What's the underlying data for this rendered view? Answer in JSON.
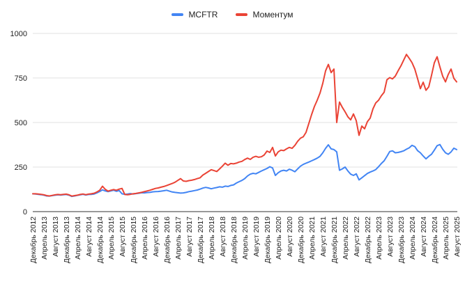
{
  "chart_data": {
    "type": "line",
    "title": "",
    "xlabel": "",
    "ylabel": "",
    "ylim": [
      0,
      1000
    ],
    "yticks": [
      0,
      250,
      500,
      750,
      1000
    ],
    "grid": true,
    "legend_position": "top-center",
    "x_start_label": "Декабрь 2012",
    "x_end_label": "Август 2025",
    "x_points_per_label": 4,
    "x_tick_labels": [
      "Декабрь 2012",
      "Апрель 2013",
      "Август 2013",
      "Декабрь 2013",
      "Апрель 2014",
      "Август 2014",
      "Декабрь 2014",
      "Апрель 2015",
      "Август 2015",
      "Декабрь 2015",
      "Апрель 2016",
      "Август 2016",
      "Декабрь 2016",
      "Апрель 2017",
      "Август 2017",
      "Декабрь 2017",
      "Апрель 2018",
      "Август 2018",
      "Декабрь 2018",
      "Апрель 2019",
      "Август 2019",
      "Декабрь 2019",
      "Апрель 2020",
      "Август 2020",
      "Декабрь 2020",
      "Апрель 2021",
      "Август 2021",
      "Декабрь 2021",
      "Апрель 2022",
      "Август 2022",
      "Декабрь 2022",
      "Апрель 2023",
      "Август 2023",
      "Декабрь 2023",
      "Апрель 2024",
      "Август 2024",
      "Декабрь 2024",
      "Апрель 2025",
      "Август 2025"
    ],
    "series": [
      {
        "name": "MCFTR",
        "color": "#4285f4",
        "values": [
          100,
          99,
          97,
          95,
          92,
          88,
          87,
          90,
          92,
          94,
          93,
          95,
          96,
          92,
          85,
          88,
          91,
          94,
          97,
          93,
          96,
          97,
          99,
          105,
          113,
          122,
          116,
          112,
          116,
          120,
          114,
          118,
          100,
          97,
          99,
          101,
          99,
          101,
          103,
          106,
          105,
          107,
          108,
          111,
          112,
          113,
          115,
          117,
          120,
          115,
          110,
          108,
          106,
          104,
          105,
          108,
          112,
          115,
          118,
          121,
          126,
          132,
          136,
          133,
          128,
          132,
          135,
          139,
          137,
          143,
          141,
          147,
          150,
          160,
          168,
          175,
          185,
          200,
          210,
          215,
          212,
          220,
          228,
          235,
          242,
          252,
          245,
          203,
          218,
          228,
          232,
          228,
          238,
          232,
          224,
          240,
          255,
          265,
          272,
          278,
          285,
          292,
          300,
          310,
          330,
          355,
          375,
          352,
          348,
          335,
          232,
          240,
          250,
          228,
          210,
          203,
          212,
          178,
          190,
          202,
          214,
          222,
          228,
          236,
          252,
          270,
          285,
          310,
          337,
          341,
          330,
          332,
          336,
          341,
          350,
          358,
          372,
          365,
          342,
          330,
          312,
          296,
          310,
          322,
          345,
          370,
          376,
          350,
          330,
          322,
          335,
          356,
          348
        ]
      },
      {
        "name": "Моментум",
        "color": "#ea4335",
        "values": [
          100,
          100,
          99,
          97,
          94,
          90,
          88,
          91,
          94,
          96,
          95,
          97,
          98,
          94,
          87,
          90,
          92,
          96,
          99,
          95,
          98,
          100,
          103,
          110,
          120,
          142,
          125,
          115,
          120,
          124,
          120,
          126,
          130,
          96,
          95,
          97,
          100,
          102,
          105,
          108,
          112,
          116,
          120,
          125,
          130,
          133,
          137,
          141,
          146,
          152,
          158,
          165,
          175,
          185,
          172,
          170,
          174,
          176,
          180,
          185,
          190,
          205,
          215,
          225,
          235,
          230,
          225,
          240,
          255,
          272,
          260,
          270,
          268,
          272,
          278,
          282,
          292,
          300,
          293,
          305,
          310,
          305,
          308,
          318,
          340,
          332,
          360,
          312,
          335,
          345,
          342,
          352,
          360,
          355,
          372,
          395,
          412,
          420,
          445,
          495,
          545,
          590,
          625,
          665,
          720,
          790,
          826,
          780,
          800,
          500,
          615,
          585,
          560,
          532,
          515,
          548,
          510,
          428,
          480,
          465,
          505,
          525,
          577,
          610,
          625,
          650,
          670,
          740,
          752,
          745,
          760,
          790,
          817,
          850,
          882,
          860,
          836,
          800,
          746,
          690,
          726,
          681,
          700,
          765,
          835,
          869,
          812,
          760,
          728,
          770,
          800,
          748,
          728
        ]
      }
    ],
    "colors": {
      "gridline": "#e0e0e0",
      "axis_baseline": "#333333",
      "tick_label": "#222222",
      "legend_text": "#212121",
      "background": "#ffffff"
    }
  }
}
